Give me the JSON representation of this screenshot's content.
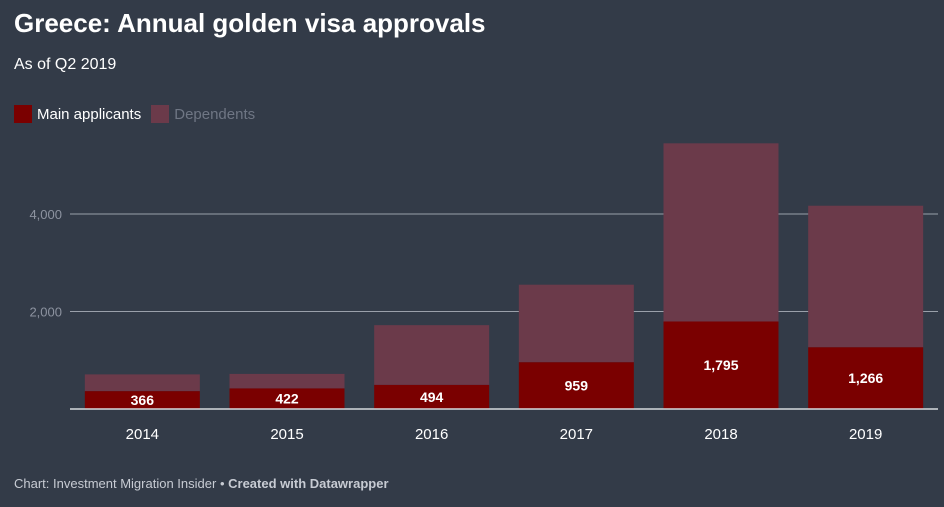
{
  "title": "Greece: Annual golden visa approvals",
  "subtitle": "As of Q2 2019",
  "legend": {
    "main_label": "Main applicants",
    "dependents_label": "Dependents"
  },
  "footer": {
    "source": "Chart: Investment Migration Insider",
    "separator": "•",
    "credit": "Created with Datawrapper"
  },
  "colors": {
    "main": "#7a0000",
    "dependents": "#6b3a4a",
    "background": "#333b48",
    "grid": "#9aa0aa"
  },
  "chart_data": {
    "type": "bar",
    "stacked": true,
    "categories": [
      "2014",
      "2015",
      "2016",
      "2017",
      "2018",
      "2019"
    ],
    "series": [
      {
        "name": "Main applicants",
        "values": [
          366,
          422,
          494,
          959,
          1795,
          1266
        ]
      },
      {
        "name": "Dependents",
        "values": [
          344,
          298,
          1226,
          1591,
          3655,
          2904
        ]
      }
    ],
    "ylim": [
      0,
      5600
    ],
    "yticks": [
      2000,
      4000
    ],
    "ytick_labels": [
      "2,000",
      "4,000"
    ],
    "data_labels": [
      "366",
      "422",
      "494",
      "959",
      "1,795",
      "1,266"
    ],
    "grid": true,
    "legend_position": "top-left"
  }
}
